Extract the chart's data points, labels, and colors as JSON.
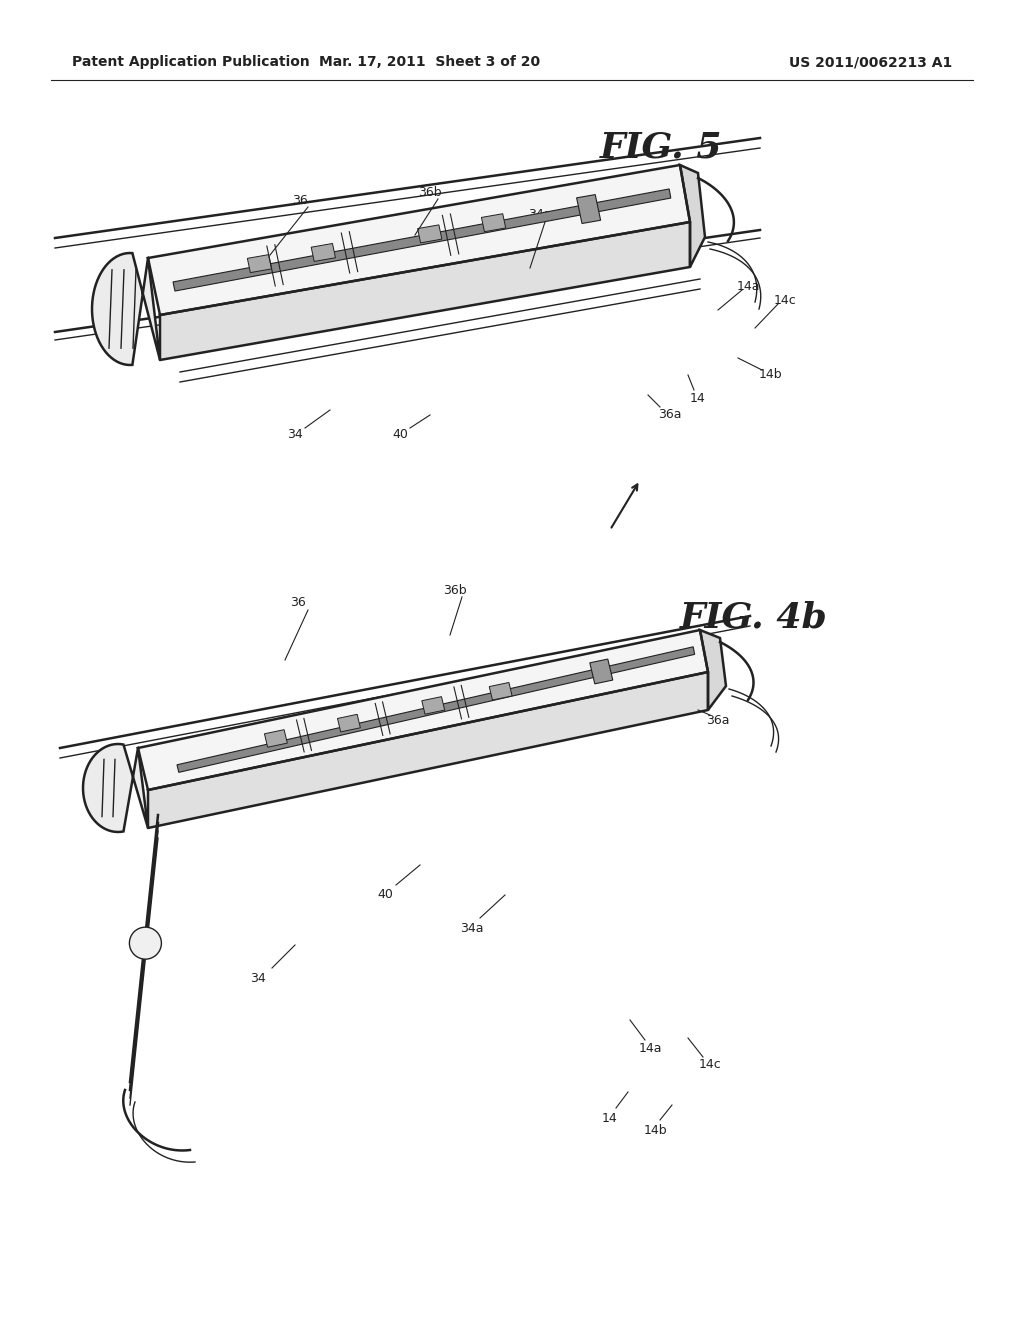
{
  "bg_color": "#ffffff",
  "header_left": "Patent Application Publication",
  "header_center": "Mar. 17, 2011  Sheet 3 of 20",
  "header_right": "US 2011/0062213 A1",
  "line_color": "#222222",
  "fig5_label": "FIG. 5",
  "fig4b_label": "FIG. 4b",
  "fig_label_fontsize": 26,
  "ref_fontsize": 9,
  "header_fontsize": 10
}
